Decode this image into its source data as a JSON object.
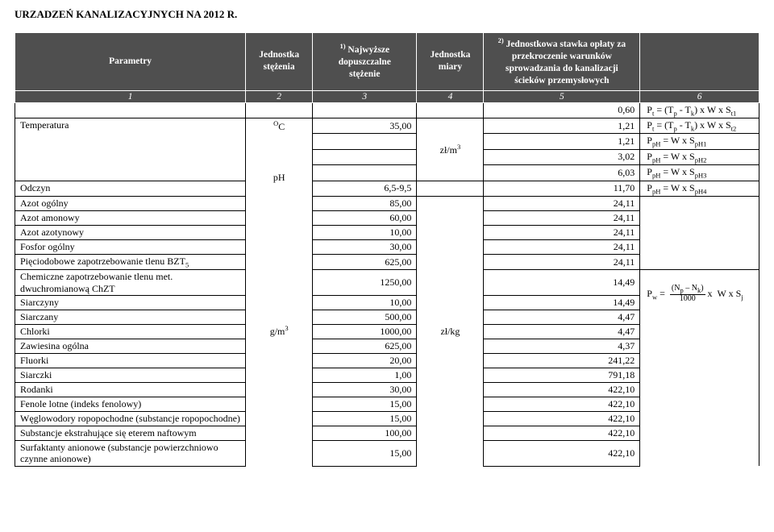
{
  "title": "URZADZEŃ KANALIZACYJNYCH NA 2012 R.",
  "headers": {
    "col1": "Parametry",
    "col2": "Jednostka stężenia",
    "col3": "1) Najwyższe dopuszczalne stężenie",
    "col4": "Jednostka miary",
    "col5": "2) Jednostkowa stawka opłaty za przekroczenie warunków sprowadzania do kanalizacji ścieków przemysłowych",
    "col6": ""
  },
  "numrow": {
    "c1": "1",
    "c2": "2",
    "c3": "3",
    "c4": "4",
    "c5": "5",
    "c6": "6"
  },
  "units": {
    "oc": "OC",
    "ph": "pH",
    "gm3": "g/m3",
    "zlm3": "zł/m3",
    "zlkg": "zł/kg"
  },
  "formula_row": {
    "val": "0,60",
    "rhs_html": "P<sub>t</sub> = (T<sub>p</sub> - T<sub>k</sub>) x W x S<sub>t1</sub>"
  },
  "temp_block": {
    "label": "Temperatura",
    "r1": {
      "conc": "35,00",
      "rate": "1,21",
      "rhs_html": "P<sub>t</sub> = (T<sub>p</sub> - T<sub>k</sub>) x W x S<sub>t2</sub>"
    },
    "r2": {
      "rate": "1,21",
      "rhs_html": "P<sub>pH</sub> = W x S<sub>pH1</sub>"
    },
    "r3": {
      "rate": "3,02",
      "rhs_html": "P<sub>pH</sub> = W x S<sub>pH2</sub>"
    },
    "r4": {
      "rate": "6,03",
      "rhs_html": "P<sub>pH</sub> = W x S<sub>pH3</sub>"
    }
  },
  "odczyn": {
    "label": "Odczyn",
    "range": "6,5-9,5",
    "rate": "11,70",
    "rhs_html": "P<sub>pH</sub> = W x S<sub>pH4</sub>"
  },
  "middle_group": {
    "rows": [
      {
        "label": "Azot ogólny",
        "conc": "85,00",
        "rate": "24,11"
      },
      {
        "label": "Azot amonowy",
        "conc": "60,00",
        "rate": "24,11"
      },
      {
        "label": "Azot azotynowy",
        "conc": "10,00",
        "rate": "24,11"
      },
      {
        "label": "Fosfor ogólny",
        "conc": "30,00",
        "rate": "24,11"
      }
    ]
  },
  "bzt5": {
    "label_html": "Pięciodobowe zapotrzebowanie tlenu BZT<sub>5</sub>",
    "conc": "625,00",
    "rate": "24,11"
  },
  "bottom_group": {
    "formula_html": "P<sub>w</sub> = <span class=\"frac\"><span class=\"num\">(N<sub>p</sub> – N<sub>k</sub>)</span><span class=\"den\">1000</span></span>x&nbsp;&nbsp;W x S<sub>j</sub>",
    "rows": [
      {
        "label": "Chemiczne zapotrzebowanie tlenu met. dwuchromianową ChZT",
        "conc": "1250,00",
        "rate": "14,49"
      },
      {
        "label": "Siarczyny",
        "conc": "10,00",
        "rate": "14,49"
      },
      {
        "label": "Siarczany",
        "conc": "500,00",
        "rate": "4,47"
      },
      {
        "label": "Chlorki",
        "conc": "1000,00",
        "rate": "4,47"
      },
      {
        "label": "Zawiesina ogólna",
        "conc": "625,00",
        "rate": "4,37"
      },
      {
        "label": "Fluorki",
        "conc": "20,00",
        "rate": "241,22"
      },
      {
        "label": "Siarczki",
        "conc": "1,00",
        "rate": "791,18"
      },
      {
        "label": "Rodanki",
        "conc": "30,00",
        "rate": "422,10"
      },
      {
        "label": "Fenole lotne (indeks fenolowy)",
        "conc": "15,00",
        "rate": "422,10"
      },
      {
        "label": "Węglowodory ropopochodne (substancje ropopochodne)",
        "conc": "15,00",
        "rate": "422,10"
      },
      {
        "label": "Substancje ekstrahujące się eterem naftowym",
        "conc": "100,00",
        "rate": "422,10"
      },
      {
        "label": "Surfaktanty anionowe (substancje powierzchniowo czynne anionowe)",
        "conc": "15,00",
        "rate": "422,10"
      }
    ]
  }
}
